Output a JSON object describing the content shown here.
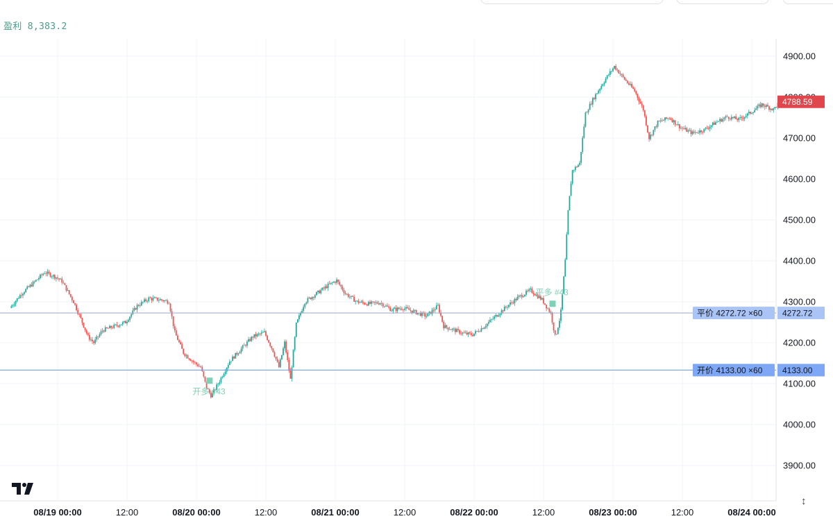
{
  "header": {
    "profit_label": "盈利 8,383.2"
  },
  "tools": {
    "scale_toggle_glyph": "↕"
  },
  "chart_data": {
    "type": "candlestick",
    "title": "",
    "xlabel": "",
    "ylabel": "",
    "ylim": [
      3820,
      4960
    ],
    "xlim_hours": [
      -8,
      125
    ],
    "grid": true,
    "y_ticks": [
      {
        "value": 4900,
        "label": "4900.00"
      },
      {
        "value": 4800,
        "label": "4800.00"
      },
      {
        "value": 4700,
        "label": "4700.00"
      },
      {
        "value": 4600,
        "label": "4600.00"
      },
      {
        "value": 4500,
        "label": "4500.00"
      },
      {
        "value": 4400,
        "label": "4400.00"
      },
      {
        "value": 4300,
        "label": "4300.00"
      },
      {
        "value": 4200,
        "label": "4200.00"
      },
      {
        "value": 4100,
        "label": "4100.00"
      },
      {
        "value": 4000,
        "label": "4000.00"
      },
      {
        "value": 3900,
        "label": "3900.00"
      }
    ],
    "x_ticks": [
      {
        "hours": 0,
        "label": "08/19 00:00",
        "major": true
      },
      {
        "hours": 12,
        "label": "12:00",
        "major": false
      },
      {
        "hours": 24,
        "label": "08/20 00:00",
        "major": true
      },
      {
        "hours": 36,
        "label": "12:00",
        "major": false
      },
      {
        "hours": 48,
        "label": "08/21 00:00",
        "major": true
      },
      {
        "hours": 60,
        "label": "12:00",
        "major": false
      },
      {
        "hours": 72,
        "label": "08/22 00:00",
        "major": true
      },
      {
        "hours": 84,
        "label": "12:00",
        "major": false
      },
      {
        "hours": 96,
        "label": "08/23 00:00",
        "major": true
      },
      {
        "hours": 108,
        "label": "12:00",
        "major": false
      },
      {
        "hours": 120,
        "label": "08/24 00:00",
        "major": true
      }
    ],
    "last_price": {
      "value": 4788.59,
      "label": "4788.59",
      "color": "#e0474c"
    },
    "price_lines": [
      {
        "value": 4272.72,
        "text": "平价 4272.72 ×60",
        "axis_label": "4272.72",
        "line_color": "#9aa7c7",
        "tag_color": "#a9c4f5"
      },
      {
        "value": 4133.0,
        "text": "开价 4133.00 ×60",
        "axis_label": "4133.00",
        "line_color": "#6f9cf2",
        "tag_color": "#7ea7f5"
      }
    ],
    "trade_markers": [
      {
        "hours": 26.2,
        "price": 4108,
        "label": "开多 #43",
        "color": "#7fd1b6"
      },
      {
        "hours": 85.5,
        "price": 4296,
        "label": "平多 #43",
        "color": "#7fd1b6"
      }
    ],
    "colors": {
      "up": "#26a69a",
      "down": "#ef5350",
      "grid": "#f0f3fa",
      "axis_text": "#131722"
    },
    "path_keypoints": [
      [
        -8,
        4285
      ],
      [
        -6,
        4320
      ],
      [
        -4,
        4345
      ],
      [
        -2,
        4372
      ],
      [
        0,
        4360
      ],
      [
        1,
        4350
      ],
      [
        3,
        4300
      ],
      [
        4.5,
        4250
      ],
      [
        5.5,
        4215
      ],
      [
        6.5,
        4200
      ],
      [
        8,
        4230
      ],
      [
        10,
        4240
      ],
      [
        12,
        4250
      ],
      [
        14,
        4290
      ],
      [
        16,
        4308
      ],
      [
        18,
        4305
      ],
      [
        19.5,
        4300
      ],
      [
        20.5,
        4225
      ],
      [
        22,
        4175
      ],
      [
        24,
        4150
      ],
      [
        25,
        4140
      ],
      [
        26,
        4090
      ],
      [
        26.8,
        4070
      ],
      [
        28,
        4100
      ],
      [
        30,
        4155
      ],
      [
        32,
        4185
      ],
      [
        34,
        4215
      ],
      [
        36,
        4225
      ],
      [
        37.5,
        4180
      ],
      [
        38.5,
        4140
      ],
      [
        39.5,
        4200
      ],
      [
        40.5,
        4110
      ],
      [
        41.5,
        4245
      ],
      [
        43,
        4300
      ],
      [
        45,
        4320
      ],
      [
        47,
        4340
      ],
      [
        48.5,
        4352
      ],
      [
        50,
        4320
      ],
      [
        52,
        4300
      ],
      [
        54,
        4295
      ],
      [
        56,
        4298
      ],
      [
        58,
        4280
      ],
      [
        60,
        4285
      ],
      [
        62,
        4275
      ],
      [
        64,
        4265
      ],
      [
        66,
        4290
      ],
      [
        67,
        4240
      ],
      [
        69,
        4230
      ],
      [
        70.5,
        4222
      ],
      [
        72,
        4220
      ],
      [
        74,
        4240
      ],
      [
        76,
        4265
      ],
      [
        78,
        4290
      ],
      [
        80,
        4312
      ],
      [
        82,
        4328
      ],
      [
        84,
        4305
      ],
      [
        85.5,
        4272
      ],
      [
        86.3,
        4212
      ],
      [
        87.2,
        4268
      ],
      [
        88,
        4400
      ],
      [
        88.5,
        4520
      ],
      [
        89.2,
        4620
      ],
      [
        90.5,
        4638
      ],
      [
        91.5,
        4760
      ],
      [
        93,
        4800
      ],
      [
        95,
        4845
      ],
      [
        96.5,
        4875
      ],
      [
        98,
        4848
      ],
      [
        100,
        4815
      ],
      [
        101.5,
        4770
      ],
      [
        102.5,
        4700
      ],
      [
        104,
        4738
      ],
      [
        106,
        4750
      ],
      [
        108,
        4725
      ],
      [
        110,
        4712
      ],
      [
        112,
        4720
      ],
      [
        114,
        4738
      ],
      [
        116,
        4752
      ],
      [
        118,
        4745
      ],
      [
        120,
        4762
      ],
      [
        122,
        4782
      ],
      [
        124,
        4770
      ],
      [
        125,
        4788
      ]
    ]
  }
}
